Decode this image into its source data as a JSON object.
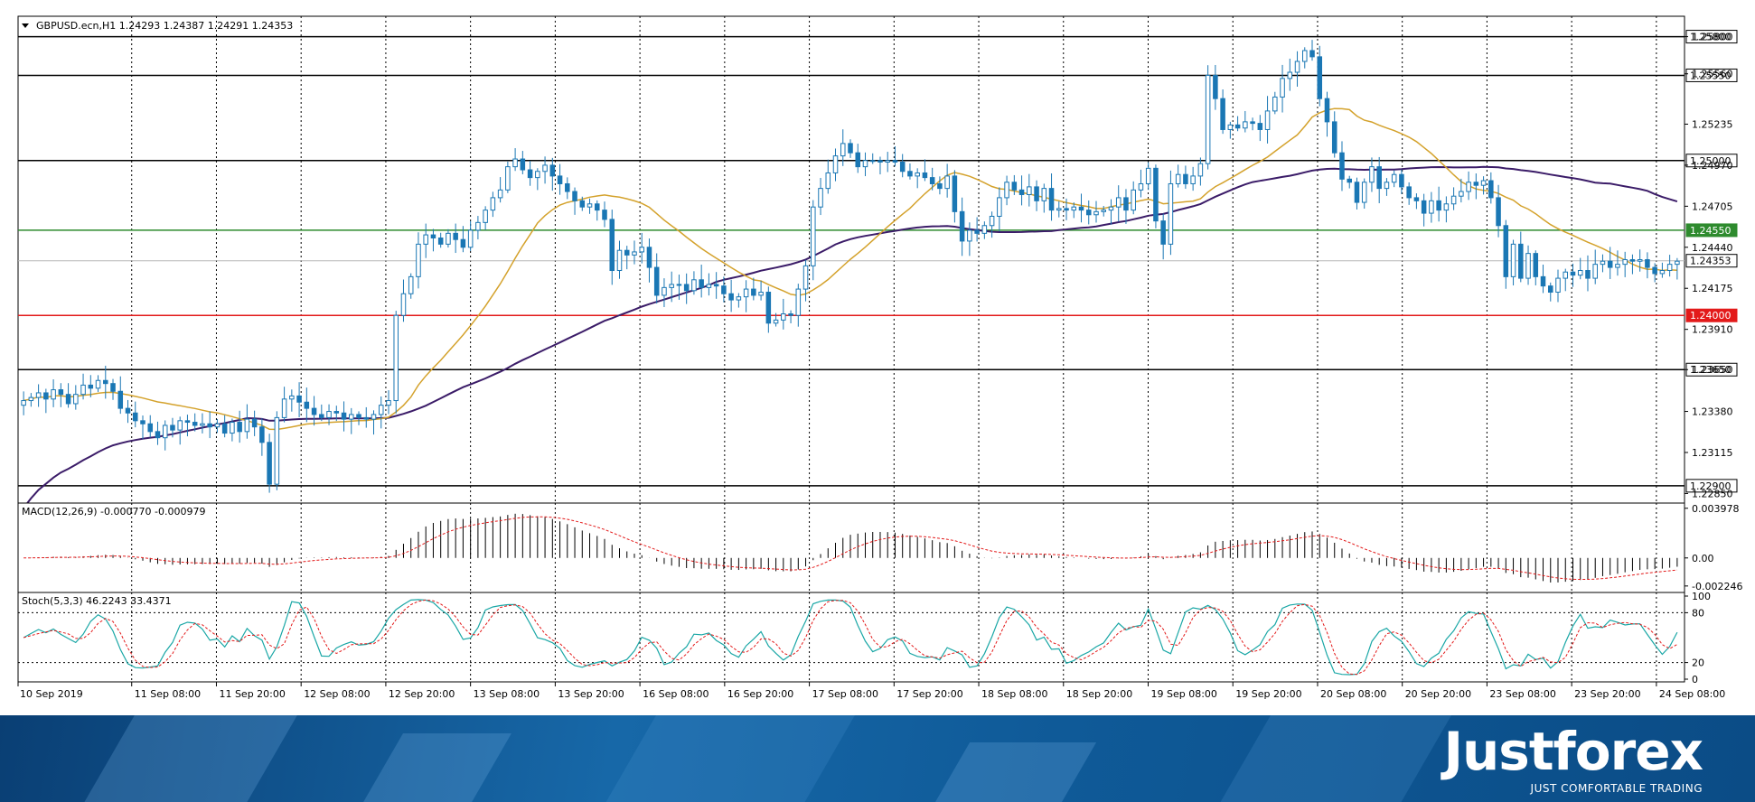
{
  "chart_data": [
    {
      "type": "candlestick",
      "header": "GBPUSD.ecn,H1  1.24293 1.24387 1.24291 1.24353",
      "price_axis": [
        "1.25800",
        "1.25560",
        "1.25235",
        "1.24970",
        "1.24705",
        "1.24440",
        "1.24175",
        "1.23910",
        "1.23650",
        "1.23380",
        "1.23115",
        "1.22850"
      ],
      "ylim": [
        1.228,
        1.2592
      ],
      "current_price": "1.24353",
      "levels": [
        {
          "label": "1.25800",
          "value": 1.258,
          "color": "#000000"
        },
        {
          "label": "1.25550",
          "value": 1.2555,
          "color": "#000000"
        },
        {
          "label": "1.25000",
          "value": 1.25,
          "color": "#000000"
        },
        {
          "label": "1.24550",
          "value": 1.2455,
          "color": "#2e8b2e"
        },
        {
          "label": "1.24000",
          "value": 1.24,
          "color": "#e31a1a"
        },
        {
          "label": "1.23650",
          "value": 1.2365,
          "color": "#000000"
        },
        {
          "label": "1.22900",
          "value": 1.229,
          "color": "#000000"
        }
      ],
      "close_series": [
        1.2345,
        1.2347,
        1.235,
        1.2346,
        1.2352,
        1.2349,
        1.2343,
        1.2349,
        1.2355,
        1.2353,
        1.2358,
        1.2356,
        1.2351,
        1.234,
        1.2337,
        1.2332,
        1.233,
        1.2325,
        1.2321,
        1.2329,
        1.2326,
        1.2332,
        1.2331,
        1.2329,
        1.233,
        1.2328,
        1.233,
        1.2324,
        1.2331,
        1.2325,
        1.2333,
        1.2328,
        1.2318,
        1.2291,
        1.2334,
        1.2346,
        1.2348,
        1.2344,
        1.234,
        1.2336,
        1.2334,
        1.2338,
        1.2337,
        1.2333,
        1.2336,
        1.2334,
        1.2333,
        1.2336,
        1.2342,
        1.2345,
        1.24,
        1.2414,
        1.2425,
        1.2446,
        1.2452,
        1.245,
        1.2446,
        1.2453,
        1.2449,
        1.2444,
        1.2455,
        1.246,
        1.2468,
        1.2476,
        1.2481,
        1.2496,
        1.2501,
        1.2494,
        1.2489,
        1.2493,
        1.2497,
        1.249,
        1.2485,
        1.248,
        1.2474,
        1.247,
        1.2472,
        1.2468,
        1.2462,
        1.2429,
        1.2442,
        1.2439,
        1.2441,
        1.2444,
        1.2431,
        1.2413,
        1.2418,
        1.242,
        1.242,
        1.2416,
        1.2423,
        1.2418,
        1.242,
        1.2419,
        1.2414,
        1.241,
        1.2412,
        1.2417,
        1.2413,
        1.2415,
        1.2395,
        1.2397,
        1.2401,
        1.24,
        1.2417,
        1.2432,
        1.247,
        1.2482,
        1.2492,
        1.2503,
        1.2511,
        1.2505,
        1.2496,
        1.25,
        1.25,
        1.2499,
        1.25,
        1.2499,
        1.2493,
        1.249,
        1.2492,
        1.2489,
        1.2485,
        1.2482,
        1.249,
        1.2467,
        1.2448,
        1.2455,
        1.2453,
        1.2458,
        1.2464,
        1.2476,
        1.2486,
        1.2481,
        1.2478,
        1.2483,
        1.2474,
        1.2482,
        1.2468,
        1.2469,
        1.2468,
        1.247,
        1.2468,
        1.2465,
        1.2467,
        1.2468,
        1.247,
        1.2476,
        1.2468,
        1.2481,
        1.2485,
        1.2495,
        1.2461,
        1.2446,
        1.2485,
        1.2491,
        1.2485,
        1.249,
        1.2498,
        1.2555,
        1.254,
        1.252,
        1.2523,
        1.2521,
        1.2525,
        1.2524,
        1.252,
        1.2532,
        1.2541,
        1.2553,
        1.2557,
        1.2564,
        1.2571,
        1.2567,
        1.254,
        1.2525,
        1.2505,
        1.2488,
        1.2486,
        1.2473,
        1.2486,
        1.2496,
        1.2482,
        1.2486,
        1.2491,
        1.2483,
        1.2476,
        1.2474,
        1.2466,
        1.2474,
        1.2468,
        1.2472,
        1.2477,
        1.248,
        1.2486,
        1.2484,
        1.2487,
        1.2476,
        1.2458,
        1.2425,
        1.2446,
        1.2424,
        1.244,
        1.2425,
        1.2419,
        1.2415,
        1.2424,
        1.2428,
        1.2426,
        1.2429,
        1.2424,
        1.2433,
        1.2435,
        1.2431,
        1.2433,
        1.2436,
        1.2435,
        1.2436,
        1.2431,
        1.2427,
        1.2429,
        1.2433,
        1.2435
      ],
      "ma_fast_name": "",
      "ma_slow_name": ""
    },
    {
      "type": "histogram",
      "header": "MACD(12,26,9) -0.000770 -0.000979",
      "axis_labels": [
        "0.003978",
        "0.00",
        "-0.002246"
      ],
      "ylim": [
        -0.00262,
        0.00425
      ]
    },
    {
      "type": "line",
      "header": "Stoch(5,3,3) 46.2243 33.4371",
      "axis_labels": [
        "100",
        "80",
        "20",
        "0"
      ],
      "ylim": [
        0,
        100
      ],
      "levels": [
        80,
        20
      ]
    }
  ],
  "time_axis": [
    "10 Sep 2019",
    "11 Sep 08:00",
    "11 Sep 20:00",
    "12 Sep 08:00",
    "12 Sep 20:00",
    "13 Sep 08:00",
    "13 Sep 20:00",
    "16 Sep 08:00",
    "16 Sep 20:00",
    "17 Sep 08:00",
    "17 Sep 20:00",
    "18 Sep 08:00",
    "18 Sep 20:00",
    "19 Sep 08:00",
    "19 Sep 20:00",
    "20 Sep 08:00",
    "20 Sep 20:00",
    "23 Sep 08:00",
    "23 Sep 20:00",
    "24 Sep 08:00"
  ],
  "colors": {
    "bull": "#ffffff",
    "bear": "#1a77b4",
    "wick": "#1a77b4",
    "ma_fast": "#d4a22c",
    "ma_slow": "#3b1c68",
    "macd_hist": "#000000",
    "macd_signal": "#e31a1a",
    "stoch_main": "#1aa7a6",
    "stoch_signal": "#e31a1a"
  },
  "brand": {
    "name": "Justforex",
    "tagline": "JUST COMFORTABLE TRADING"
  }
}
